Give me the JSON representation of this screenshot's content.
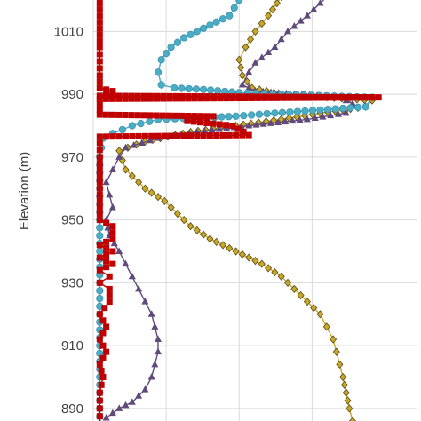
{
  "chart_data": {
    "type": "line",
    "ylabel": "Elevation (m)",
    "xlabel": "",
    "ylim": [
      886,
      1020
    ],
    "xlim": [
      0,
      100
    ],
    "yticks": [
      890,
      910,
      930,
      950,
      970,
      990,
      1010
    ],
    "xgrid": [
      22.5,
      45,
      67.5,
      90
    ],
    "grid": true,
    "series": [
      {
        "marker": "square",
        "color": "#c00000",
        "points": [
          [
            2,
            1021
          ],
          [
            2,
            1015
          ],
          [
            2,
            1005
          ],
          [
            2,
            996
          ],
          [
            2,
            992
          ],
          [
            6,
            991
          ],
          [
            6,
            990
          ],
          [
            2,
            989.5
          ],
          [
            88,
            989
          ],
          [
            2,
            988.5
          ],
          [
            2,
            987
          ],
          [
            2,
            985
          ],
          [
            2,
            983.5
          ],
          [
            37,
            983
          ],
          [
            29,
            981.5
          ],
          [
            43,
            980
          ],
          [
            48,
            977
          ],
          [
            2,
            976.5
          ],
          [
            2,
            974.5
          ],
          [
            2,
            970
          ],
          [
            2,
            960
          ],
          [
            2,
            950
          ],
          [
            6,
            948
          ],
          [
            6,
            944
          ],
          [
            2,
            942
          ],
          [
            6,
            940
          ],
          [
            2,
            938
          ],
          [
            6,
            936
          ],
          [
            2,
            934
          ],
          [
            5,
            932
          ],
          [
            2,
            930
          ],
          [
            5,
            928
          ],
          [
            5,
            924
          ],
          [
            2,
            920
          ],
          [
            4,
            916
          ],
          [
            2,
            912
          ],
          [
            4,
            908
          ],
          [
            2,
            904
          ],
          [
            3,
            900
          ],
          [
            2,
            895
          ],
          [
            2,
            890
          ],
          [
            2,
            885
          ]
        ]
      },
      {
        "marker": "circle",
        "color": "#4bacc6",
        "points": [
          [
            45,
            1020
          ],
          [
            42,
            1015
          ],
          [
            36,
            1012
          ],
          [
            28,
            1008
          ],
          [
            24,
            1005
          ],
          [
            21,
            1001
          ],
          [
            20,
            997
          ],
          [
            21,
            993
          ],
          [
            25,
            992
          ],
          [
            34,
            991.5
          ],
          [
            45,
            990.5
          ],
          [
            58,
            990
          ],
          [
            72,
            989.5
          ],
          [
            86,
            989
          ],
          [
            84,
            986
          ],
          [
            70,
            985
          ],
          [
            56,
            984
          ],
          [
            44,
            983
          ],
          [
            33,
            982.5
          ],
          [
            20,
            982
          ],
          [
            12,
            980
          ],
          [
            6,
            977.5
          ],
          [
            3,
            976
          ],
          [
            2,
            970
          ],
          [
            2,
            960
          ],
          [
            2,
            950
          ],
          [
            2,
            940
          ],
          [
            2,
            930
          ],
          [
            2,
            920
          ],
          [
            2,
            910
          ],
          [
            2,
            900
          ],
          [
            2,
            890
          ],
          [
            2,
            885
          ]
        ]
      },
      {
        "marker": "triangle",
        "color": "#604a7b",
        "points": [
          [
            72,
            1021
          ],
          [
            66,
            1015
          ],
          [
            60,
            1010
          ],
          [
            56,
            1005
          ],
          [
            50,
            1000
          ],
          [
            48,
            997
          ],
          [
            46,
            993
          ],
          [
            50,
            991
          ],
          [
            62,
            990
          ],
          [
            76,
            989
          ],
          [
            80,
            987
          ],
          [
            78,
            984
          ],
          [
            66,
            982
          ],
          [
            48,
            980
          ],
          [
            32,
            978
          ],
          [
            20,
            976
          ],
          [
            10,
            973
          ],
          [
            8,
            970
          ],
          [
            6,
            966
          ],
          [
            4,
            962
          ],
          [
            5,
            958
          ],
          [
            6,
            954
          ],
          [
            4,
            950
          ],
          [
            5,
            945
          ],
          [
            8,
            940
          ],
          [
            10,
            936
          ],
          [
            12,
            932
          ],
          [
            14,
            928
          ],
          [
            16,
            924
          ],
          [
            18,
            920
          ],
          [
            19,
            916
          ],
          [
            20,
            912
          ],
          [
            20,
            908
          ],
          [
            19,
            904
          ],
          [
            18,
            900
          ],
          [
            16,
            896
          ],
          [
            12,
            892
          ],
          [
            8,
            890
          ],
          [
            4,
            887
          ]
        ]
      },
      {
        "marker": "diamond",
        "color": "#c7a82a",
        "points": [
          [
            58,
            1021
          ],
          [
            54,
            1015
          ],
          [
            50,
            1010
          ],
          [
            47,
            1005
          ],
          [
            45,
            1001
          ],
          [
            46,
            996
          ],
          [
            49,
            992
          ],
          [
            58,
            990
          ],
          [
            72,
            989
          ],
          [
            86,
            988
          ],
          [
            84,
            986
          ],
          [
            70,
            984
          ],
          [
            58,
            982
          ],
          [
            44,
            980
          ],
          [
            30,
            978
          ],
          [
            16,
            975
          ],
          [
            8,
            972
          ],
          [
            10,
            966
          ],
          [
            16,
            960
          ],
          [
            22,
            956
          ],
          [
            26,
            952
          ],
          [
            30,
            948
          ],
          [
            36,
            944
          ],
          [
            44,
            940
          ],
          [
            52,
            936
          ],
          [
            58,
            932
          ],
          [
            62,
            928
          ],
          [
            66,
            924
          ],
          [
            70,
            920
          ],
          [
            72,
            916
          ],
          [
            74,
            912
          ],
          [
            75,
            908
          ],
          [
            76,
            904
          ],
          [
            77,
            900
          ],
          [
            78,
            895
          ],
          [
            79,
            890
          ],
          [
            80,
            886
          ]
        ]
      }
    ]
  }
}
